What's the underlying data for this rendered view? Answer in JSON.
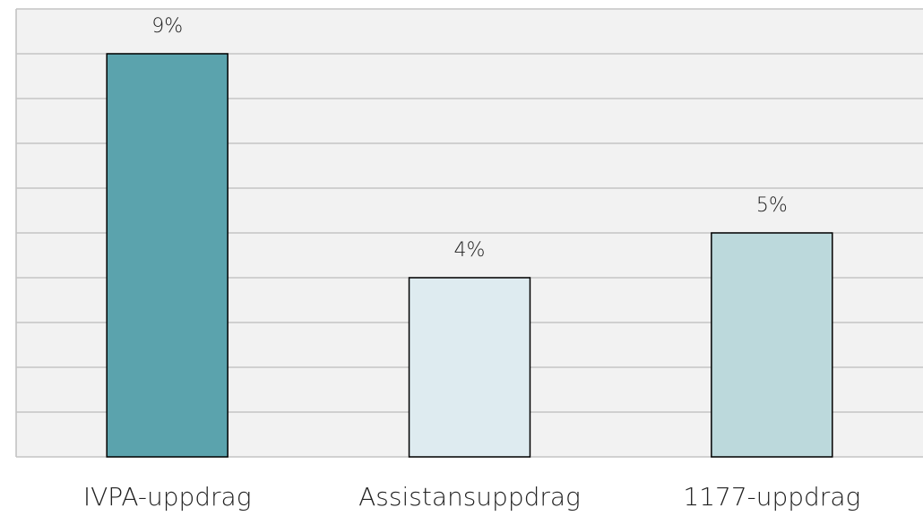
{
  "chart_data": {
    "type": "bar",
    "categories": [
      "IVPA-uppdrag",
      "Assistansuppdrag",
      "1177-uppdrag"
    ],
    "values": [
      9,
      4,
      5
    ],
    "value_labels": [
      "9%",
      "4%",
      "5%"
    ],
    "colors": [
      "#5ba3ad",
      "#deebf0",
      "#bcd9dc"
    ],
    "ylim": [
      0,
      10
    ],
    "yticks": [
      0,
      1,
      2,
      3,
      4,
      5,
      6,
      7,
      8,
      9,
      10
    ],
    "grid": true
  }
}
